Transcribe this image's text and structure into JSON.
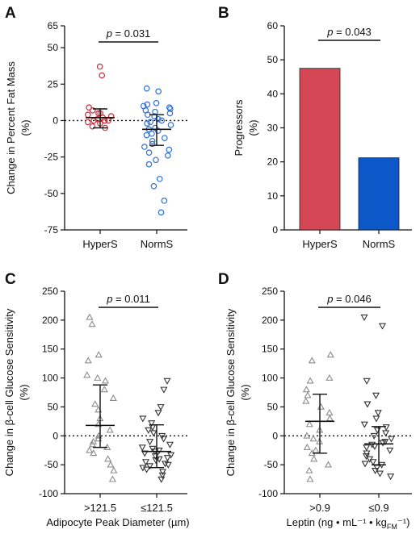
{
  "chart_data": [
    {
      "panel": "A",
      "type": "scatter",
      "ylabel": "Change in Percent Fat Mass",
      "yunit": "(%)",
      "ylim": [
        -75,
        65
      ],
      "yticks": [
        "65",
        "50",
        "25",
        "0",
        "-25",
        "-50",
        "-75"
      ],
      "categories": [
        "HyperS",
        "NormS"
      ],
      "pvalue": "p = 0.031",
      "marker": "circle",
      "colors": [
        "#cc2d3a",
        "#2f6fd6"
      ],
      "zero_line": true,
      "series": [
        {
          "name": "HyperS",
          "mean": 2,
          "err_low": -5,
          "err_high": 8,
          "values": [
            37,
            31,
            9,
            7,
            5,
            5,
            4,
            3,
            2,
            1,
            0,
            0,
            0,
            -1,
            -2,
            -4,
            -5
          ]
        },
        {
          "name": "NormS",
          "mean": -6,
          "err_low": -17,
          "err_high": 4,
          "values": [
            22,
            20,
            12,
            11,
            10,
            9,
            8,
            7,
            6,
            5,
            4,
            3,
            1,
            0,
            -1,
            -2,
            -3,
            -5,
            -6,
            -7,
            -9,
            -10,
            -12,
            -14,
            -16,
            -18,
            -20,
            -22,
            -24,
            -27,
            -30,
            -40,
            -45,
            -55,
            -63
          ]
        }
      ]
    },
    {
      "panel": "B",
      "type": "bar",
      "ylabel": "Progressors",
      "yunit": "(%)",
      "ylim": [
        0,
        60
      ],
      "yticks": [
        "60",
        "50",
        "40",
        "30",
        "20",
        "10",
        "0"
      ],
      "categories": [
        "HyperS",
        "NormS"
      ],
      "values": [
        47.5,
        21.2
      ],
      "colors": [
        "#d64755",
        "#0d58c8"
      ],
      "pvalue": "p = 0.043"
    },
    {
      "panel": "C",
      "type": "scatter",
      "ylabel": "Change in β-cell Glucose Sensitivity",
      "yunit": "(%)",
      "xlabel": "Adipocyte Peak Diameter (µm)",
      "ylim": [
        -100,
        250
      ],
      "yticks": [
        "250",
        "200",
        "150",
        "100",
        "50",
        "0",
        "-50",
        "-100"
      ],
      "categories": [
        ">121.5",
        "≤121.5"
      ],
      "pvalue": "p = 0.011",
      "marker": [
        "triangle-up",
        "triangle-down"
      ],
      "colors": [
        "#8c8c8c",
        "#333333"
      ],
      "zero_line": true,
      "series": [
        {
          "name": ">121.5",
          "mean": 18,
          "err_low": -20,
          "err_high": 88,
          "values": [
            205,
            193,
            140,
            130,
            105,
            100,
            95,
            80,
            65,
            55,
            45,
            30,
            20,
            10,
            0,
            -5,
            -10,
            -15,
            -20,
            -25,
            -30,
            -40,
            -50,
            -60,
            -75
          ]
        },
        {
          "name": "≤121.5",
          "mean": -27,
          "err_low": -55,
          "err_high": 19,
          "values": [
            95,
            80,
            50,
            40,
            30,
            22,
            15,
            10,
            5,
            0,
            -5,
            -10,
            -15,
            -20,
            -22,
            -25,
            -27,
            -30,
            -33,
            -35,
            -38,
            -40,
            -42,
            -45,
            -48,
            -50,
            -52,
            -55,
            -58,
            -62,
            -68,
            -75
          ]
        }
      ]
    },
    {
      "panel": "D",
      "type": "scatter",
      "ylabel": "Change in β-cell Glucose Sensitivity",
      "yunit": "(%)",
      "xlabel": "Leptin (ng • mL⁻¹ • kg",
      "xlabel_sub": "FM",
      "xlabel_end": "⁻¹)",
      "ylim": [
        -100,
        250
      ],
      "yticks": [
        "250",
        "200",
        "150",
        "100",
        "50",
        "0",
        "-50",
        "-100"
      ],
      "categories": [
        ">0.9",
        "≤0.9"
      ],
      "pvalue": "p = 0.046",
      "marker": [
        "triangle-up",
        "triangle-down"
      ],
      "colors": [
        "#8c8c8c",
        "#333333"
      ],
      "zero_line": true,
      "series": [
        {
          "name": ">0.9",
          "mean": 25,
          "err_low": -30,
          "err_high": 72,
          "values": [
            140,
            130,
            100,
            95,
            80,
            70,
            60,
            50,
            40,
            30,
            20,
            10,
            0,
            -5,
            -10,
            -20,
            -25,
            -30,
            -40,
            -50,
            -60,
            -75
          ]
        },
        {
          "name": "≤0.9",
          "mean": -14,
          "err_low": -50,
          "err_high": 16,
          "values": [
            205,
            190,
            95,
            70,
            55,
            40,
            30,
            20,
            15,
            10,
            5,
            0,
            -5,
            -10,
            -12,
            -15,
            -18,
            -20,
            -25,
            -30,
            -35,
            -40,
            -45,
            -48,
            -50,
            -55,
            -60,
            -65,
            -70
          ]
        }
      ]
    }
  ]
}
